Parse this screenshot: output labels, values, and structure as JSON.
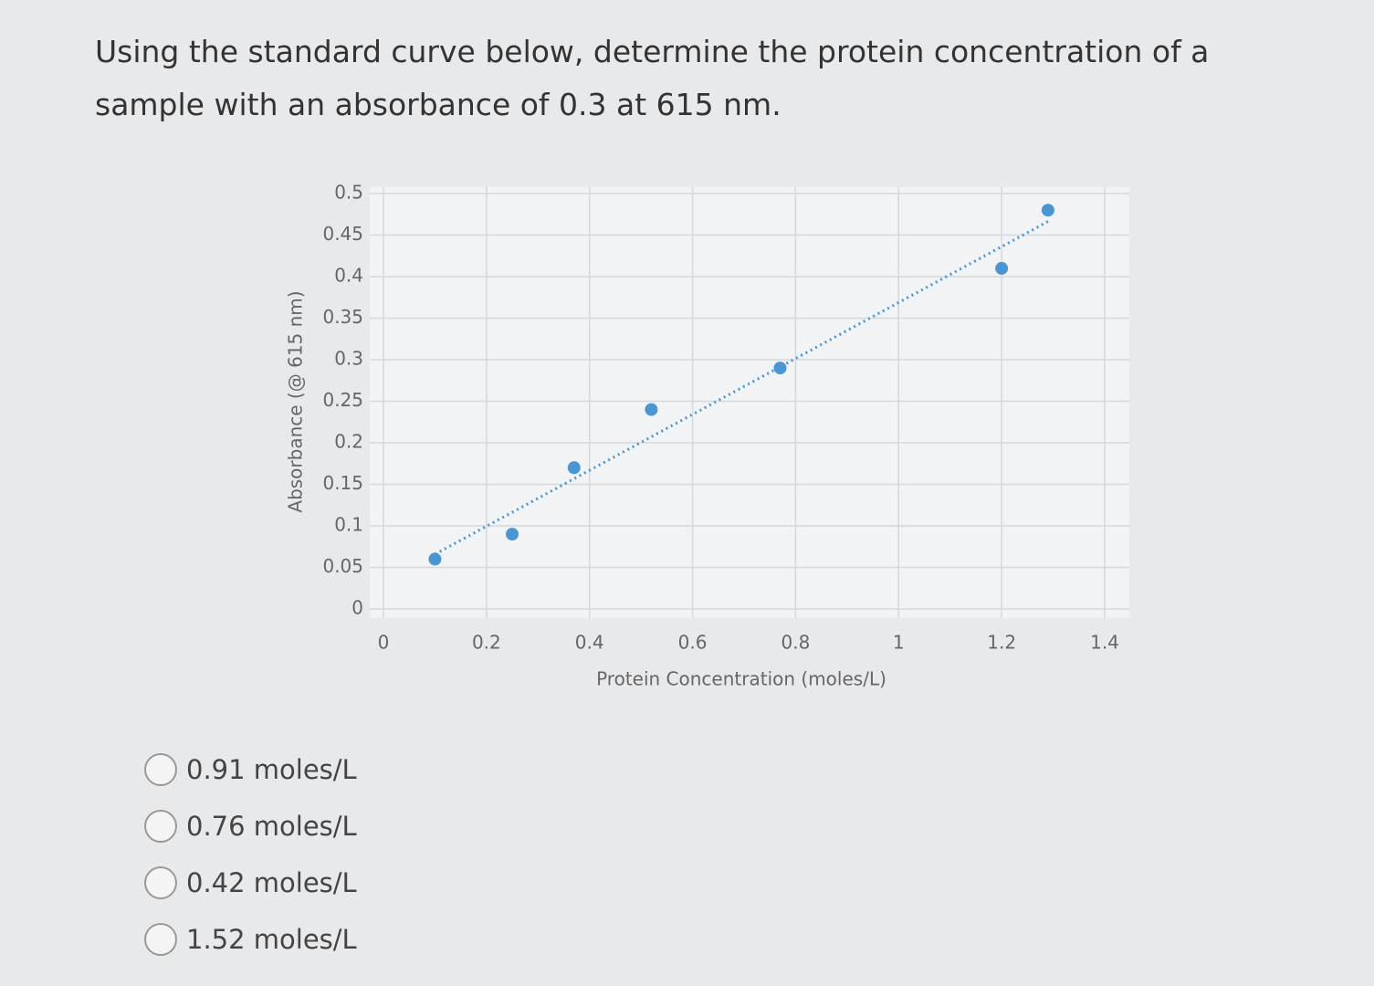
{
  "question": "Using the standard curve below, determine the protein concentration of a sample with an absorbance of 0.3 at 615 nm.",
  "chart_data": {
    "type": "scatter",
    "x_label": "Protein Concentration (moles/L)",
    "y_label": "Absorbance (@ 615 nm)",
    "x": [
      0.1,
      0.25,
      0.37,
      0.52,
      0.77,
      1.2,
      1.29
    ],
    "values": [
      0.06,
      0.09,
      0.17,
      0.24,
      0.29,
      0.41,
      0.48
    ],
    "color": "#4a95d2",
    "trendline": true,
    "xlim": [
      0,
      1.4
    ],
    "xticks": [
      0,
      0.2,
      0.4,
      0.6,
      0.8,
      1,
      1.2,
      1.4
    ],
    "ylim": [
      0,
      0.5
    ],
    "yticks": [
      0,
      0.05,
      0.1,
      0.15,
      0.2,
      0.25,
      0.3,
      0.35,
      0.4,
      0.45,
      0.5
    ],
    "grid": true
  },
  "options": [
    "0.91 moles/L",
    "0.76 moles/L",
    "0.42 moles/L",
    "1.52 moles/L"
  ]
}
